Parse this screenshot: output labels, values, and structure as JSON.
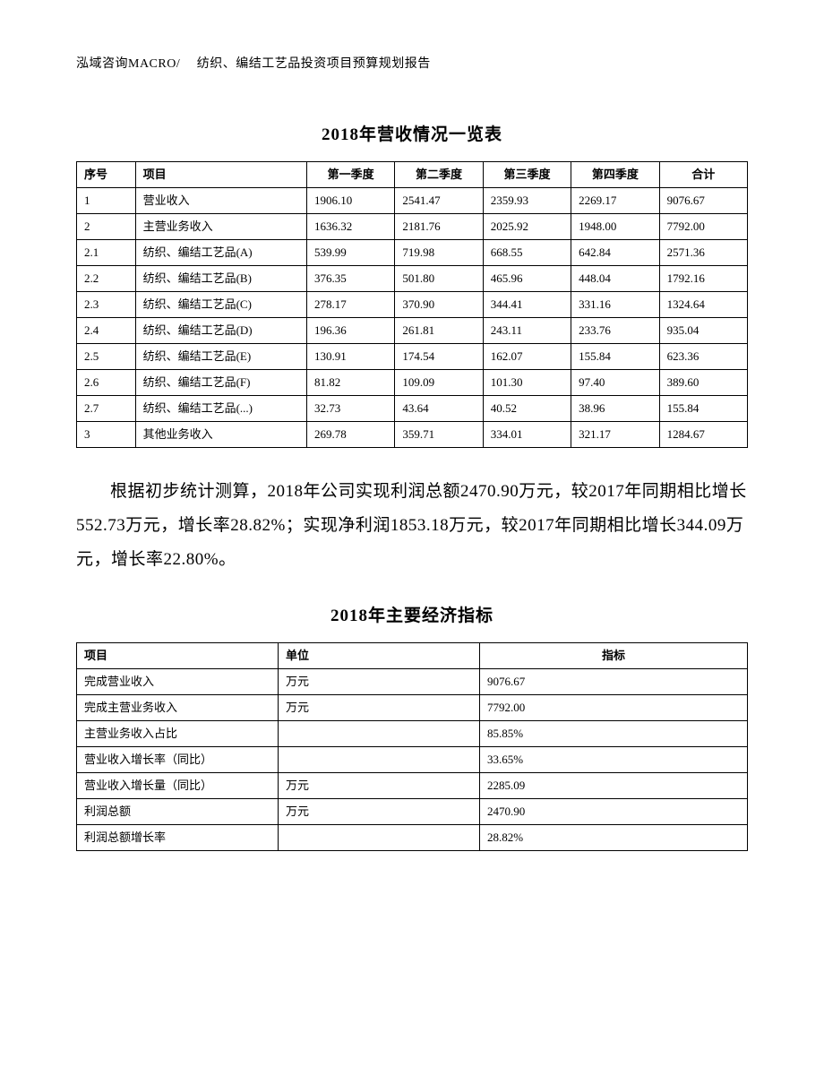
{
  "header": "泓域咨询MACRO/　 纺织、编结工艺品投资项目预算规划报告",
  "table1": {
    "title": "2018年营收情况一览表",
    "columns": [
      "序号",
      "项目",
      "第一季度",
      "第二季度",
      "第三季度",
      "第四季度",
      "合计"
    ],
    "rows": [
      [
        "1",
        "营业收入",
        "1906.10",
        "2541.47",
        "2359.93",
        "2269.17",
        "9076.67"
      ],
      [
        "2",
        "主营业务收入",
        "1636.32",
        "2181.76",
        "2025.92",
        "1948.00",
        "7792.00"
      ],
      [
        "2.1",
        "纺织、编结工艺品(A)",
        "539.99",
        "719.98",
        "668.55",
        "642.84",
        "2571.36"
      ],
      [
        "2.2",
        "纺织、编结工艺品(B)",
        "376.35",
        "501.80",
        "465.96",
        "448.04",
        "1792.16"
      ],
      [
        "2.3",
        "纺织、编结工艺品(C)",
        "278.17",
        "370.90",
        "344.41",
        "331.16",
        "1324.64"
      ],
      [
        "2.4",
        "纺织、编结工艺品(D)",
        "196.36",
        "261.81",
        "243.11",
        "233.76",
        "935.04"
      ],
      [
        "2.5",
        "纺织、编结工艺品(E)",
        "130.91",
        "174.54",
        "162.07",
        "155.84",
        "623.36"
      ],
      [
        "2.6",
        "纺织、编结工艺品(F)",
        "81.82",
        "109.09",
        "101.30",
        "97.40",
        "389.60"
      ],
      [
        "2.7",
        "纺织、编结工艺品(...)",
        "32.73",
        "43.64",
        "40.52",
        "38.96",
        "155.84"
      ],
      [
        "3",
        "其他业务收入",
        "269.78",
        "359.71",
        "334.01",
        "321.17",
        "1284.67"
      ]
    ]
  },
  "paragraph": "根据初步统计测算，2018年公司实现利润总额2470.90万元，较2017年同期相比增长552.73万元，增长率28.82%；实现净利润1853.18万元，较2017年同期相比增长344.09万元，增长率22.80%。",
  "table2": {
    "title": "2018年主要经济指标",
    "columns": [
      "项目",
      "单位",
      "指标"
    ],
    "rows": [
      [
        "完成营业收入",
        "万元",
        "9076.67"
      ],
      [
        "完成主营业务收入",
        "万元",
        "7792.00"
      ],
      [
        "主营业务收入占比",
        "",
        "85.85%"
      ],
      [
        "营业收入增长率（同比）",
        "",
        "33.65%"
      ],
      [
        "营业收入增长量（同比）",
        "万元",
        "2285.09"
      ],
      [
        "利润总额",
        "万元",
        "2470.90"
      ],
      [
        "利润总额增长率",
        "",
        "28.82%"
      ]
    ]
  }
}
